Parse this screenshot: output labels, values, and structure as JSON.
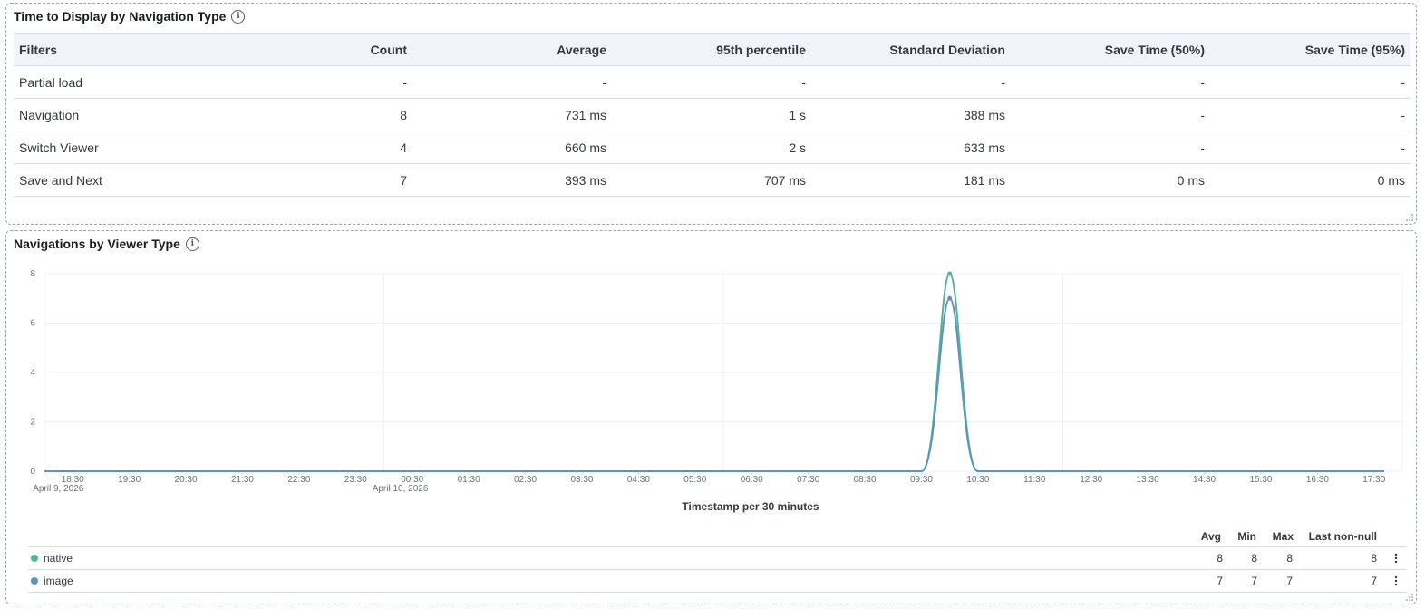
{
  "table_panel": {
    "title": "Time to Display by Navigation Type",
    "columns": [
      "Filters",
      "Count",
      "Average",
      "95th percentile",
      "Standard Deviation",
      "Save Time (50%)",
      "Save Time (95%)"
    ],
    "rows": [
      [
        "Partial load",
        "-",
        "-",
        "-",
        "-",
        "-",
        "-"
      ],
      [
        "Navigation",
        "8",
        "731 ms",
        "1 s",
        "388 ms",
        "-",
        "-"
      ],
      [
        "Switch Viewer",
        "4",
        "660 ms",
        "2 s",
        "633 ms",
        "-",
        "-"
      ],
      [
        "Save and Next",
        "7",
        "393 ms",
        "707 ms",
        "181 ms",
        "0 ms",
        "0 ms"
      ]
    ]
  },
  "chart_panel": {
    "title": "Navigations by Viewer Type",
    "legend_headers": [
      "Avg",
      "Min",
      "Max",
      "Last non-null"
    ],
    "legend_rows": [
      {
        "name": "native",
        "color": "#54b399",
        "avg": "8",
        "min": "8",
        "max": "8",
        "last": "8"
      },
      {
        "name": "image",
        "color": "#6092c0",
        "avg": "7",
        "min": "7",
        "max": "7",
        "last": "7"
      }
    ]
  },
  "chart_data": {
    "type": "line",
    "xlabel": "Timestamp per 30 minutes",
    "ylabel": "",
    "ylim": [
      0,
      8
    ],
    "yticks": [
      0,
      2,
      4,
      6,
      8
    ],
    "x_ticks": [
      "18:30",
      "19:30",
      "20:30",
      "21:30",
      "22:30",
      "23:30",
      "00:30",
      "01:30",
      "02:30",
      "03:30",
      "04:30",
      "05:30",
      "06:30",
      "07:30",
      "08:30",
      "09:30",
      "10:30",
      "11:30",
      "12:30",
      "13:30",
      "14:30",
      "15:30",
      "16:30",
      "17:30"
    ],
    "x_date_labels": [
      {
        "tick": "18:30",
        "label": "April 9, 2026"
      },
      {
        "tick": "00:30",
        "label": "April 10, 2026"
      }
    ],
    "x_range": [
      "2026-04-09 18:00",
      "2026-04-10 18:00"
    ],
    "series": [
      {
        "name": "native",
        "color": "#54b399",
        "x": [
          "2026-04-10 10:00"
        ],
        "y": [
          8
        ]
      },
      {
        "name": "image",
        "color": "#6092c0",
        "x": [
          "2026-04-10 10:00"
        ],
        "y": [
          7
        ]
      }
    ],
    "grid": true,
    "legend": "bottom"
  }
}
